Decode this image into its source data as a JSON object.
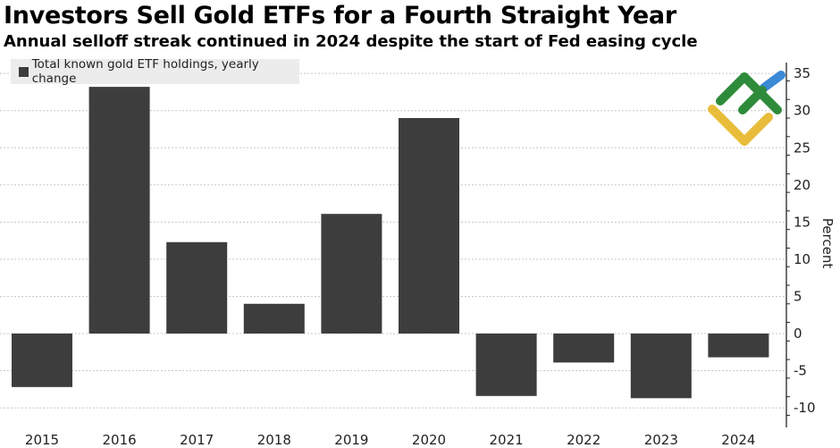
{
  "chart_data": {
    "type": "bar",
    "title": "Investors Sell Gold ETFs for a Fourth Straight Year",
    "subtitle": "Annual selloff streak continued in 2024 despite the start of Fed easing cycle",
    "categories": [
      "2015",
      "2016",
      "2017",
      "2018",
      "2019",
      "2020",
      "2021",
      "2022",
      "2023",
      "2024"
    ],
    "series": [
      {
        "name": "Total known gold ETF holdings, yearly change",
        "values": [
          -7.2,
          33.2,
          12.3,
          4.0,
          16.1,
          29.0,
          -8.4,
          -3.9,
          -8.7,
          -3.2
        ]
      }
    ],
    "xlabel": "",
    "ylabel": "Percent",
    "ylim": [
      -11,
      36
    ],
    "yticks": [
      35,
      30,
      25,
      20,
      15,
      10,
      5,
      0,
      -5,
      -10
    ],
    "y_axis_side": "right",
    "grid": true,
    "legend_position": "top-left",
    "bar_color": "#3d3d3d"
  },
  "logo": {
    "colors": [
      "#2e8b3a",
      "#3a8ad6",
      "#e8bd3a"
    ]
  }
}
